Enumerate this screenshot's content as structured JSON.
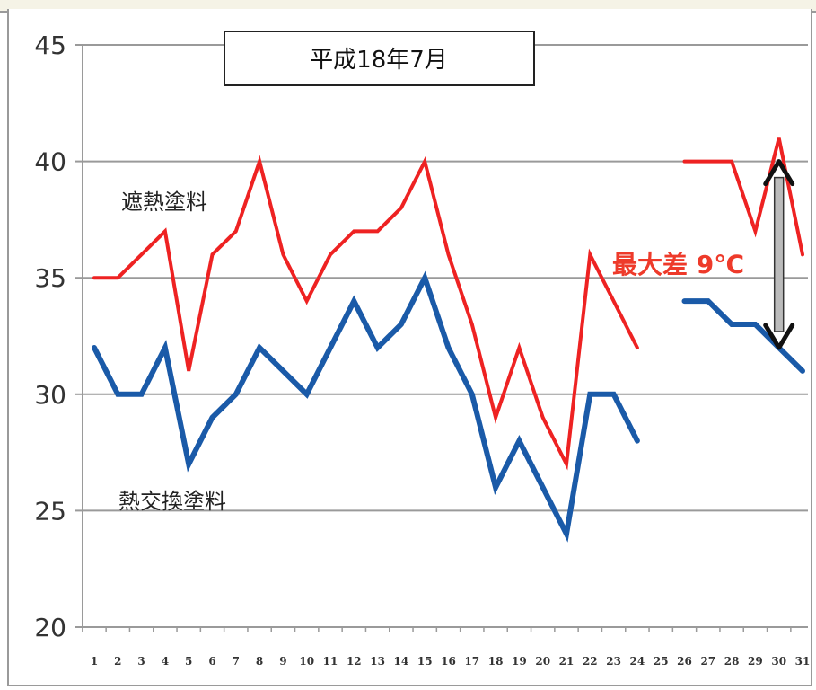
{
  "chart_data": {
    "type": "line",
    "title": "平成18年7月",
    "xlabel": "",
    "ylabel": "",
    "ylim": [
      20,
      45
    ],
    "yticks": [
      "20",
      "25",
      "30",
      "35",
      "40",
      "45"
    ],
    "categories": [
      "1",
      "2",
      "3",
      "4",
      "5",
      "6",
      "7",
      "8",
      "9",
      "10",
      "11",
      "12",
      "13",
      "14",
      "15",
      "16",
      "17",
      "18",
      "19",
      "20",
      "21",
      "22",
      "23",
      "24",
      "25",
      "26",
      "27",
      "28",
      "29",
      "30",
      "31"
    ],
    "grid": true,
    "series": [
      {
        "name": "遮熱塗料",
        "color": "#ee2222",
        "values": [
          35,
          35,
          36,
          37,
          31,
          36,
          37,
          40,
          36,
          34,
          36,
          37,
          37,
          38,
          40,
          36,
          33,
          29,
          32,
          29,
          27,
          36,
          34,
          32,
          null,
          40,
          40,
          40,
          37,
          41,
          36
        ]
      },
      {
        "name": "熱交換塗料",
        "color": "#1a5aa8",
        "values": [
          32,
          30,
          30,
          32,
          27,
          29,
          30,
          32,
          31,
          30,
          32,
          34,
          32,
          33,
          35,
          32,
          30,
          26,
          28,
          26,
          24,
          30,
          30,
          28,
          null,
          34,
          34,
          33,
          33,
          32,
          31
        ]
      }
    ],
    "annotation": {
      "text": "最大差  9℃",
      "color": "#ee3a2a",
      "arrow_from": 40,
      "arrow_to": 32,
      "arrow_at": "30"
    }
  }
}
